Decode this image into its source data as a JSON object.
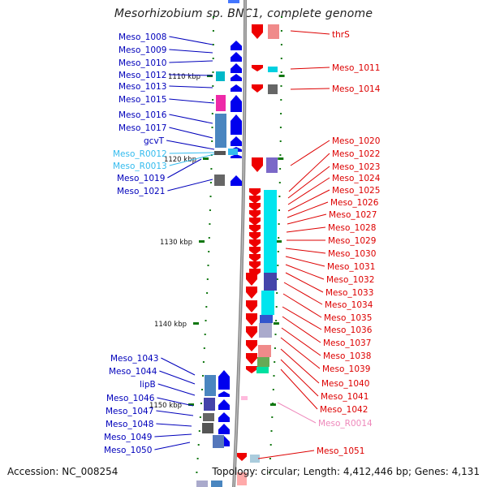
{
  "title": "Mesorhizobium sp. BNC1, complete genome",
  "accession": "Accession: NC_008254",
  "topology": "Topology: circular; Length: 4,412,446 bp; Genes: 4,131",
  "colors": {
    "left_labels": "#0000bb",
    "right_labels": "#dd0000",
    "rna_left": "#33bbee",
    "rna_right": "#ee88bb",
    "tick_marks": "#117711",
    "backbone": "#888888"
  },
  "ticks": [
    {
      "label": "1110 kbp"
    },
    {
      "label": "1120 kbp"
    },
    {
      "label": "1130 kbp"
    },
    {
      "label": "1140 kbp"
    },
    {
      "label": "1150 kbp"
    }
  ],
  "left_genes": [
    "Meso_1008",
    "Meso_1009",
    "Meso_1010",
    "Meso_1012",
    "Meso_1013",
    "Meso_1015",
    "Meso_1016",
    "Meso_1017",
    "gcvT",
    "Meso_R0012",
    "Meso_R0013",
    "Meso_1019",
    "Meso_1021",
    "Meso_1043",
    "Meso_1044",
    "lipB",
    "Meso_1046",
    "Meso_1047",
    "Meso_1048",
    "Meso_1049",
    "Meso_1050"
  ],
  "right_genes": [
    "thrS",
    "Meso_1011",
    "Meso_1014",
    "Meso_1020",
    "Meso_1022",
    "Meso_1023",
    "Meso_1024",
    "Meso_1025",
    "Meso_1026",
    "Meso_1027",
    "Meso_1028",
    "Meso_1029",
    "Meso_1030",
    "Meso_1031",
    "Meso_1032",
    "Meso_1033",
    "Meso_1034",
    "Meso_1035",
    "Meso_1036",
    "Meso_1037",
    "Meso_1038",
    "Meso_1039",
    "Meso_1040",
    "Meso_1041",
    "Meso_1042",
    "Meso_R0014",
    "Meso_1051"
  ]
}
